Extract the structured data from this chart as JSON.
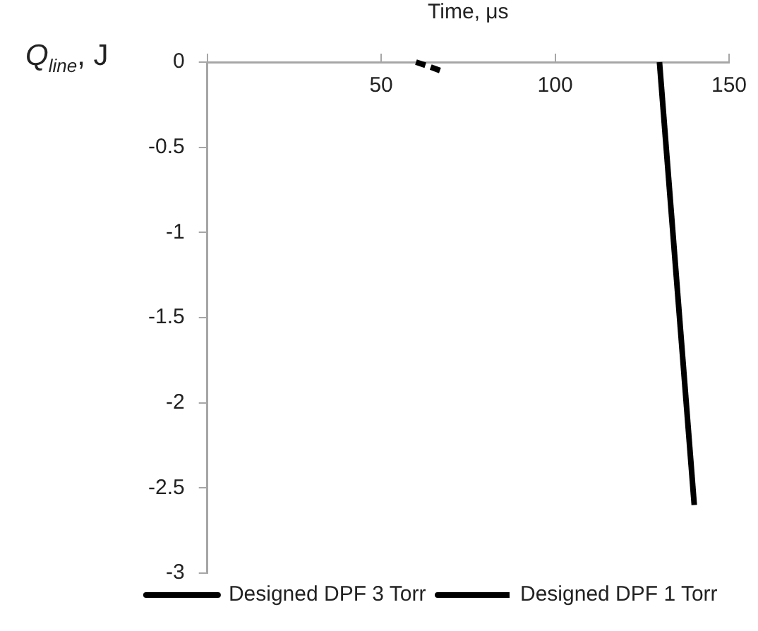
{
  "chart_data": {
    "type": "line",
    "xlabel": "Time, μs",
    "ylabel": "Q$_{line}$, J",
    "xlim": [
      0,
      150
    ],
    "xticks": [
      {
        "value": 0,
        "label": null
      },
      50,
      100,
      150
    ],
    "ylim": [
      -3,
      0
    ],
    "yticks": [
      0,
      -0.5,
      -1,
      -1.5,
      -2,
      -2.5,
      -3
    ],
    "grid": false,
    "legend": "bottom",
    "marker": "none",
    "series": [
      {
        "name": "Designed DPF 3 Torr",
        "color": "#000000",
        "line_style": "solid",
        "x": [
          130,
          140
        ],
        "values": [
          0,
          -2.6
        ]
      },
      {
        "name": "Designed DPF 1 Torr",
        "color": "#000000",
        "line_style": "dashed",
        "x": [
          60,
          63,
          67
        ],
        "values": [
          0,
          -0.02,
          -0.05
        ]
      }
    ]
  }
}
